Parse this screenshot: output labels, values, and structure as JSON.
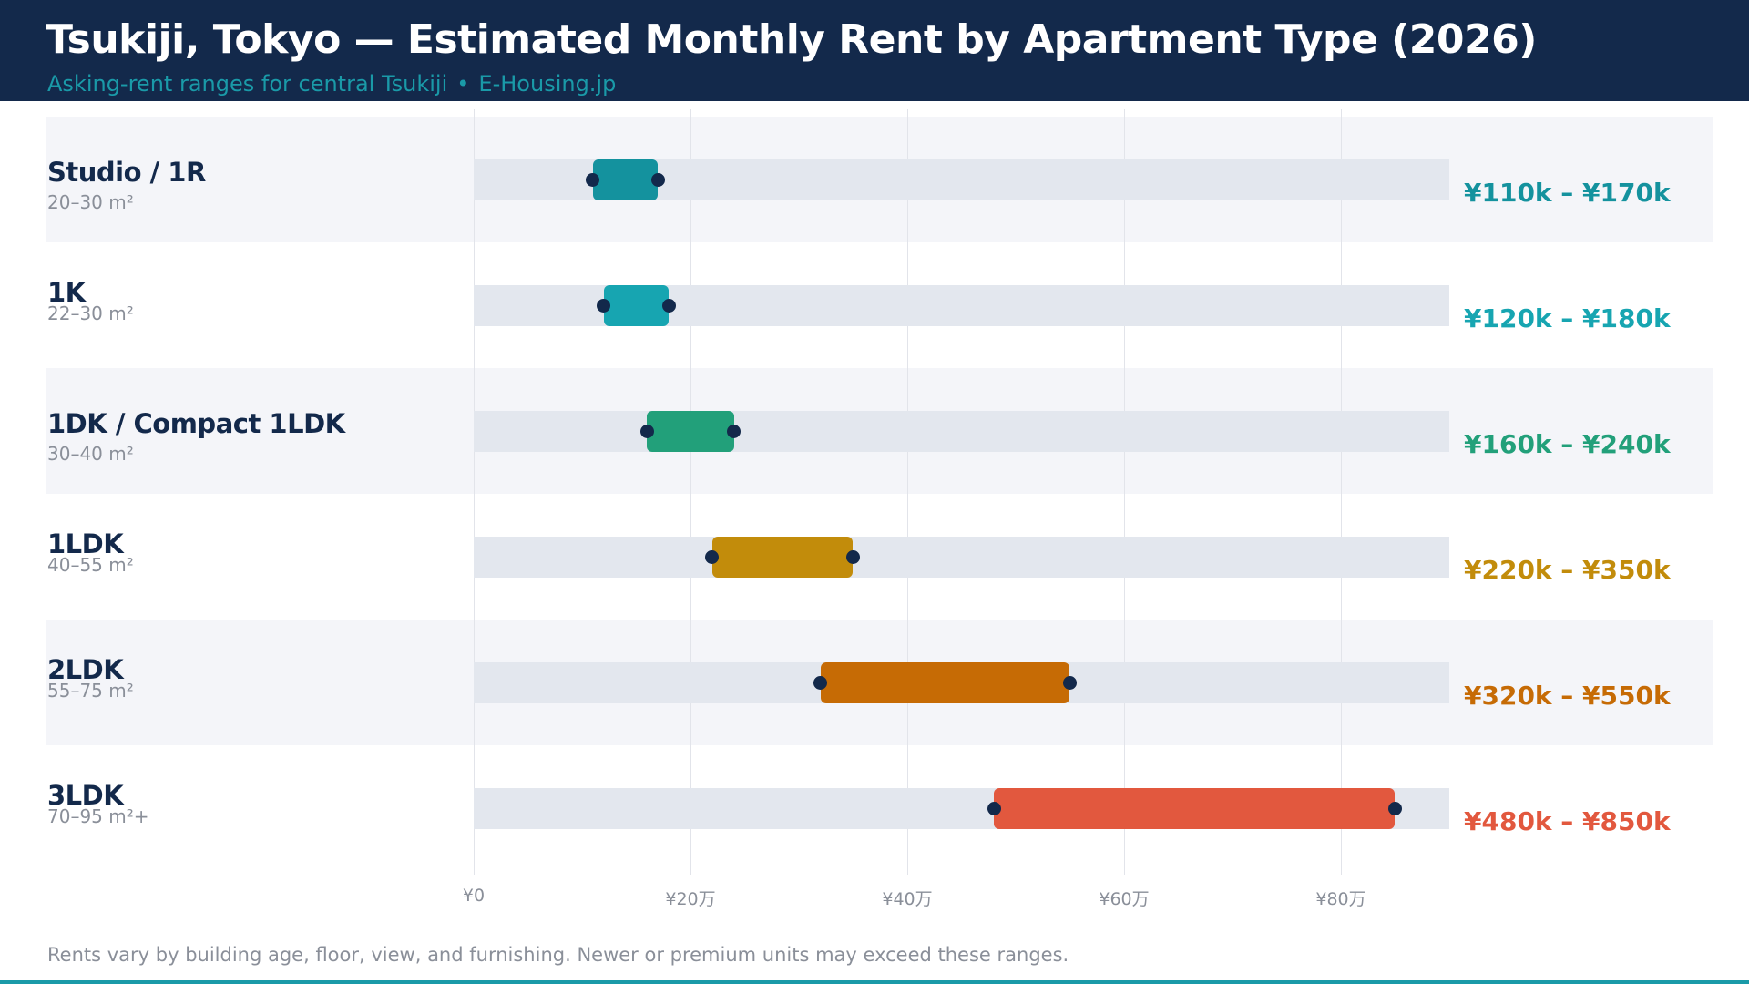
{
  "header": {
    "title": "Tsukiji, Tokyo — Estimated Monthly Rent by Apartment Type (2026)",
    "subtitle": "Asking-rent ranges for central Tsukiji",
    "separator": "•",
    "source": "E-Housing.jp"
  },
  "footnote": "Rents vary by building age, floor, view, and furnishing. Newer or premium units may exceed these ranges.",
  "colors": {
    "header_bg": "#13294b",
    "accent": "#1a9aa8",
    "endpoint": "#13294b"
  },
  "chart_data": {
    "type": "range-bar",
    "x_unit": "thousand yen per month",
    "xlim": [
      0,
      900
    ],
    "x_ticks": [
      0,
      200,
      400,
      600,
      800
    ],
    "x_tick_labels": [
      "¥0",
      "¥20万",
      "¥40万",
      "¥60万",
      "¥80万"
    ],
    "grid": true,
    "categories": [
      "Studio / 1R",
      "1K",
      "1DK / Compact 1LDK",
      "1LDK",
      "2LDK",
      "3LDK"
    ],
    "sizes": [
      "20–30 m²",
      "22–30 m²",
      "30–40 m²",
      "40–55 m²",
      "55–75 m²",
      "70–95 m²+"
    ],
    "series": [
      {
        "low": [
          110,
          120,
          160,
          220,
          320,
          480
        ],
        "high": [
          170,
          180,
          240,
          350,
          550,
          850
        ]
      }
    ],
    "range_labels": [
      "¥110k – ¥170k",
      "¥120k – ¥180k",
      "¥160k – ¥240k",
      "¥220k – ¥350k",
      "¥320k – ¥550k",
      "¥480k – ¥850k"
    ],
    "bar_colors": [
      "#14929e",
      "#17a5b1",
      "#22a07a",
      "#c28c0b",
      "#c66b05",
      "#e2583e"
    ]
  }
}
